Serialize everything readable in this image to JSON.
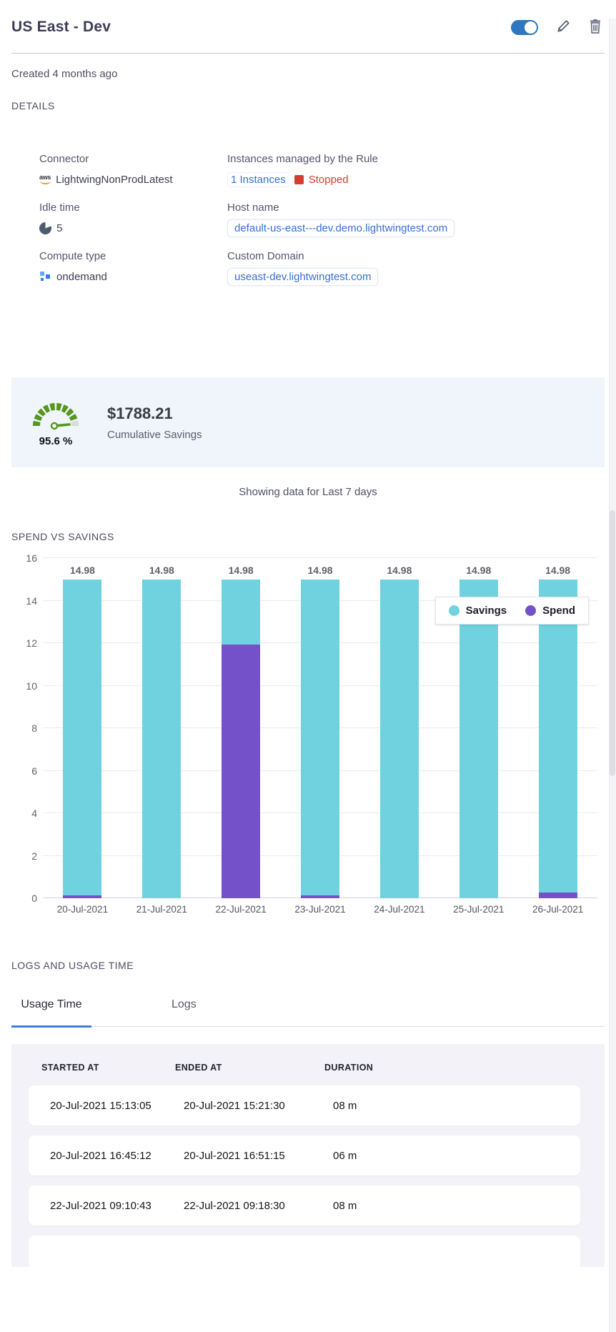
{
  "header": {
    "title": "US East - Dev",
    "toggle_state": "on"
  },
  "created": "Created 4 months ago",
  "sections": {
    "details": "DETAILS",
    "spend_vs_savings": "SPEND VS SAVINGS",
    "logs_usage": "LOGS AND USAGE TIME"
  },
  "details": {
    "connector": {
      "label": "Connector",
      "value": "LightwingNonProdLatest",
      "icon": "aws-logo"
    },
    "instances": {
      "label": "Instances managed by the Rule",
      "link": "1 Instances",
      "status": "Stopped"
    },
    "idle_time": {
      "label": "Idle time",
      "value": "5"
    },
    "host_name": {
      "label": "Host name",
      "value": "default-us-east---dev.demo.lightwingtest.com"
    },
    "compute_type": {
      "label": "Compute type",
      "value": "ondemand"
    },
    "custom_domain": {
      "label": "Custom Domain",
      "value": "useast-dev.lightwingtest.com"
    }
  },
  "savings": {
    "percent": "95.6 %",
    "amount": "$1788.21",
    "caption": "Cumulative Savings"
  },
  "period_note": "Showing data for Last 7 days",
  "chart_data": {
    "type": "bar",
    "stacked": true,
    "title": "SPEND VS SAVINGS",
    "categories": [
      "20-Jul-2021",
      "21-Jul-2021",
      "22-Jul-2021",
      "23-Jul-2021",
      "24-Jul-2021",
      "25-Jul-2021",
      "26-Jul-2021"
    ],
    "series": [
      {
        "name": "Savings",
        "color": "#70d2de",
        "values": [
          14.86,
          14.98,
          3.05,
          14.86,
          14.98,
          14.98,
          14.7
        ]
      },
      {
        "name": "Spend",
        "color": "#7451c9",
        "values": [
          0.12,
          0.0,
          11.93,
          0.12,
          0.0,
          0.0,
          0.28
        ]
      }
    ],
    "bar_total_labels": [
      "14.98",
      "14.98",
      "14.98",
      "14.98",
      "14.98",
      "14.98",
      "14.98"
    ],
    "ylim": [
      0,
      16
    ],
    "yticks": [
      0,
      2,
      4,
      6,
      8,
      10,
      12,
      14,
      16
    ],
    "grid": true,
    "legend_position": "top-right"
  },
  "tabs": [
    {
      "label": "Usage Time",
      "active": true
    },
    {
      "label": "Logs",
      "active": false
    }
  ],
  "table": {
    "columns": [
      "STARTED AT",
      "ENDED AT",
      "DURATION"
    ],
    "rows": [
      [
        "20-Jul-2021 15:13:05",
        "20-Jul-2021 15:21:30",
        "08 m"
      ],
      [
        "20-Jul-2021 16:45:12",
        "20-Jul-2021 16:51:15",
        "06 m"
      ],
      [
        "22-Jul-2021 09:10:43",
        "22-Jul-2021 09:18:30",
        "08 m"
      ]
    ],
    "has_partial_next_row": true
  },
  "colors": {
    "accent_blue": "#3770d4",
    "toggle_blue": "#2e76bd",
    "stopped_red": "#d43d30",
    "gauge_green": "#55961e",
    "savings_teal": "#70d2de",
    "spend_purple": "#7451c9",
    "panel_bg": "#eff5fb",
    "table_bg": "#f2f2f8"
  }
}
